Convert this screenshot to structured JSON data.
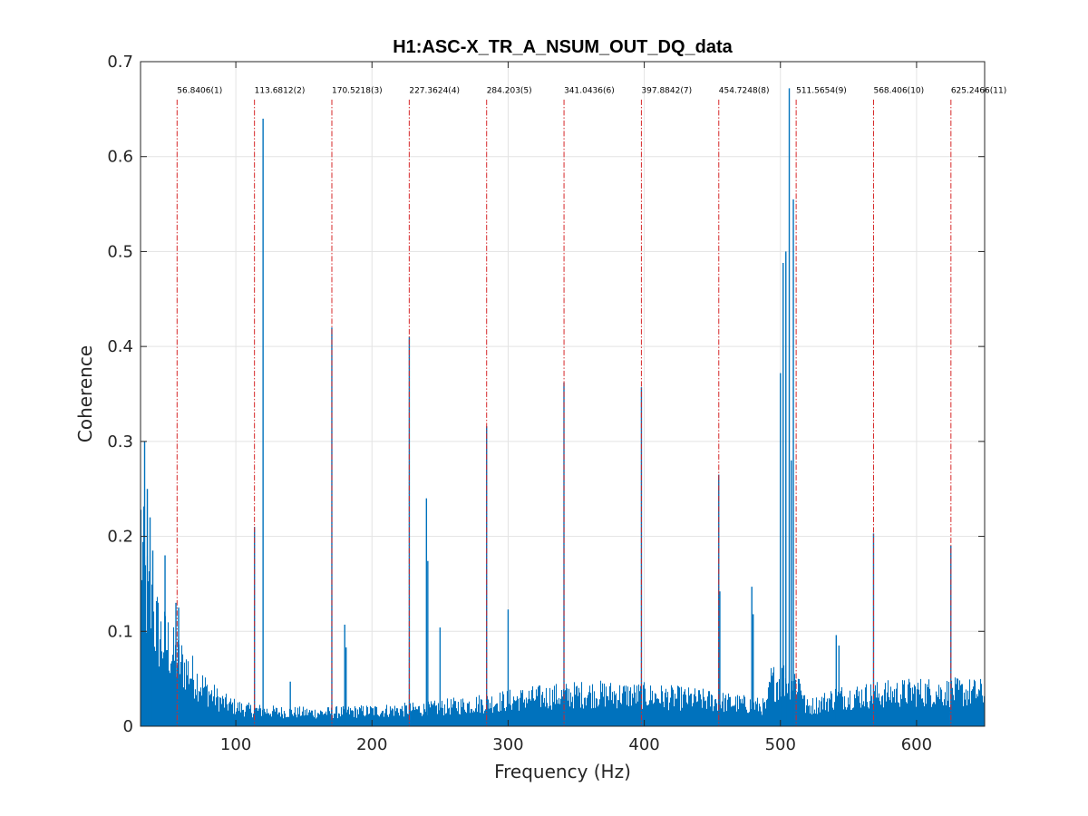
{
  "chart_data": {
    "type": "bar",
    "title": "H1:ASC-X_TR_A_NSUM_OUT_DQ_data",
    "xlabel": "Frequency (Hz)",
    "ylabel": "Coherence",
    "xlim": [
      30,
      650
    ],
    "ylim": [
      0,
      0.7
    ],
    "xticks": [
      100,
      200,
      300,
      400,
      500,
      600
    ],
    "yticks": [
      0,
      0.1,
      0.2,
      0.3,
      0.4,
      0.5,
      0.6,
      0.7
    ],
    "grid": true,
    "bar_color": "#0072BD",
    "marker_color": "#D62728",
    "markers": [
      {
        "freq": 56.8406,
        "label": "56.8406(1)"
      },
      {
        "freq": 113.6812,
        "label": "113.6812(2)"
      },
      {
        "freq": 170.5218,
        "label": "170.5218(3)"
      },
      {
        "freq": 227.3624,
        "label": "227.3624(4)"
      },
      {
        "freq": 284.203,
        "label": "284.203(5)"
      },
      {
        "freq": 341.0436,
        "label": "341.0436(6)"
      },
      {
        "freq": 397.8842,
        "label": "397.8842(7)"
      },
      {
        "freq": 454.7248,
        "label": "454.7248(8)"
      },
      {
        "freq": 511.5654,
        "label": "511.5654(9)"
      },
      {
        "freq": 568.406,
        "label": "568.406(10)"
      },
      {
        "freq": 625.2466,
        "label": "625.2466(11)"
      }
    ],
    "baseline": [
      [
        30,
        0.2
      ],
      [
        32,
        0.16
      ],
      [
        35,
        0.13
      ],
      [
        40,
        0.11
      ],
      [
        45,
        0.09
      ],
      [
        50,
        0.085
      ],
      [
        55,
        0.07
      ],
      [
        60,
        0.065
      ],
      [
        70,
        0.05
      ],
      [
        80,
        0.035
      ],
      [
        90,
        0.025
      ],
      [
        100,
        0.02
      ],
      [
        110,
        0.017
      ],
      [
        130,
        0.015
      ],
      [
        160,
        0.014
      ],
      [
        200,
        0.016
      ],
      [
        240,
        0.018
      ],
      [
        280,
        0.024
      ],
      [
        320,
        0.03
      ],
      [
        360,
        0.034
      ],
      [
        400,
        0.032
      ],
      [
        440,
        0.028
      ],
      [
        480,
        0.022
      ],
      [
        490,
        0.02
      ],
      [
        492,
        0.045
      ],
      [
        505,
        0.05
      ],
      [
        515,
        0.045
      ],
      [
        518,
        0.02
      ],
      [
        525,
        0.022
      ],
      [
        540,
        0.03
      ],
      [
        560,
        0.032
      ],
      [
        600,
        0.036
      ],
      [
        650,
        0.035
      ]
    ],
    "peaks": [
      {
        "x": 33,
        "y": 0.3
      },
      {
        "x": 35,
        "y": 0.25
      },
      {
        "x": 37,
        "y": 0.22
      },
      {
        "x": 39,
        "y": 0.185
      },
      {
        "x": 48,
        "y": 0.18
      },
      {
        "x": 56,
        "y": 0.13
      },
      {
        "x": 58,
        "y": 0.125
      },
      {
        "x": 113.7,
        "y": 0.21
      },
      {
        "x": 120,
        "y": 0.64
      },
      {
        "x": 140,
        "y": 0.047
      },
      {
        "x": 170.5,
        "y": 0.42
      },
      {
        "x": 180,
        "y": 0.107
      },
      {
        "x": 181,
        "y": 0.083
      },
      {
        "x": 227.4,
        "y": 0.41
      },
      {
        "x": 240,
        "y": 0.24
      },
      {
        "x": 241,
        "y": 0.174
      },
      {
        "x": 250,
        "y": 0.104
      },
      {
        "x": 284.2,
        "y": 0.316
      },
      {
        "x": 300,
        "y": 0.123
      },
      {
        "x": 341.0,
        "y": 0.362
      },
      {
        "x": 397.9,
        "y": 0.357
      },
      {
        "x": 454.7,
        "y": 0.265
      },
      {
        "x": 455.5,
        "y": 0.142
      },
      {
        "x": 479,
        "y": 0.147
      },
      {
        "x": 480,
        "y": 0.118
      },
      {
        "x": 500,
        "y": 0.372
      },
      {
        "x": 502,
        "y": 0.488
      },
      {
        "x": 504,
        "y": 0.5
      },
      {
        "x": 506.5,
        "y": 0.672
      },
      {
        "x": 508,
        "y": 0.28
      },
      {
        "x": 509.5,
        "y": 0.555
      },
      {
        "x": 541,
        "y": 0.096
      },
      {
        "x": 543,
        "y": 0.085
      },
      {
        "x": 568.4,
        "y": 0.203
      },
      {
        "x": 625.2,
        "y": 0.19
      }
    ]
  }
}
